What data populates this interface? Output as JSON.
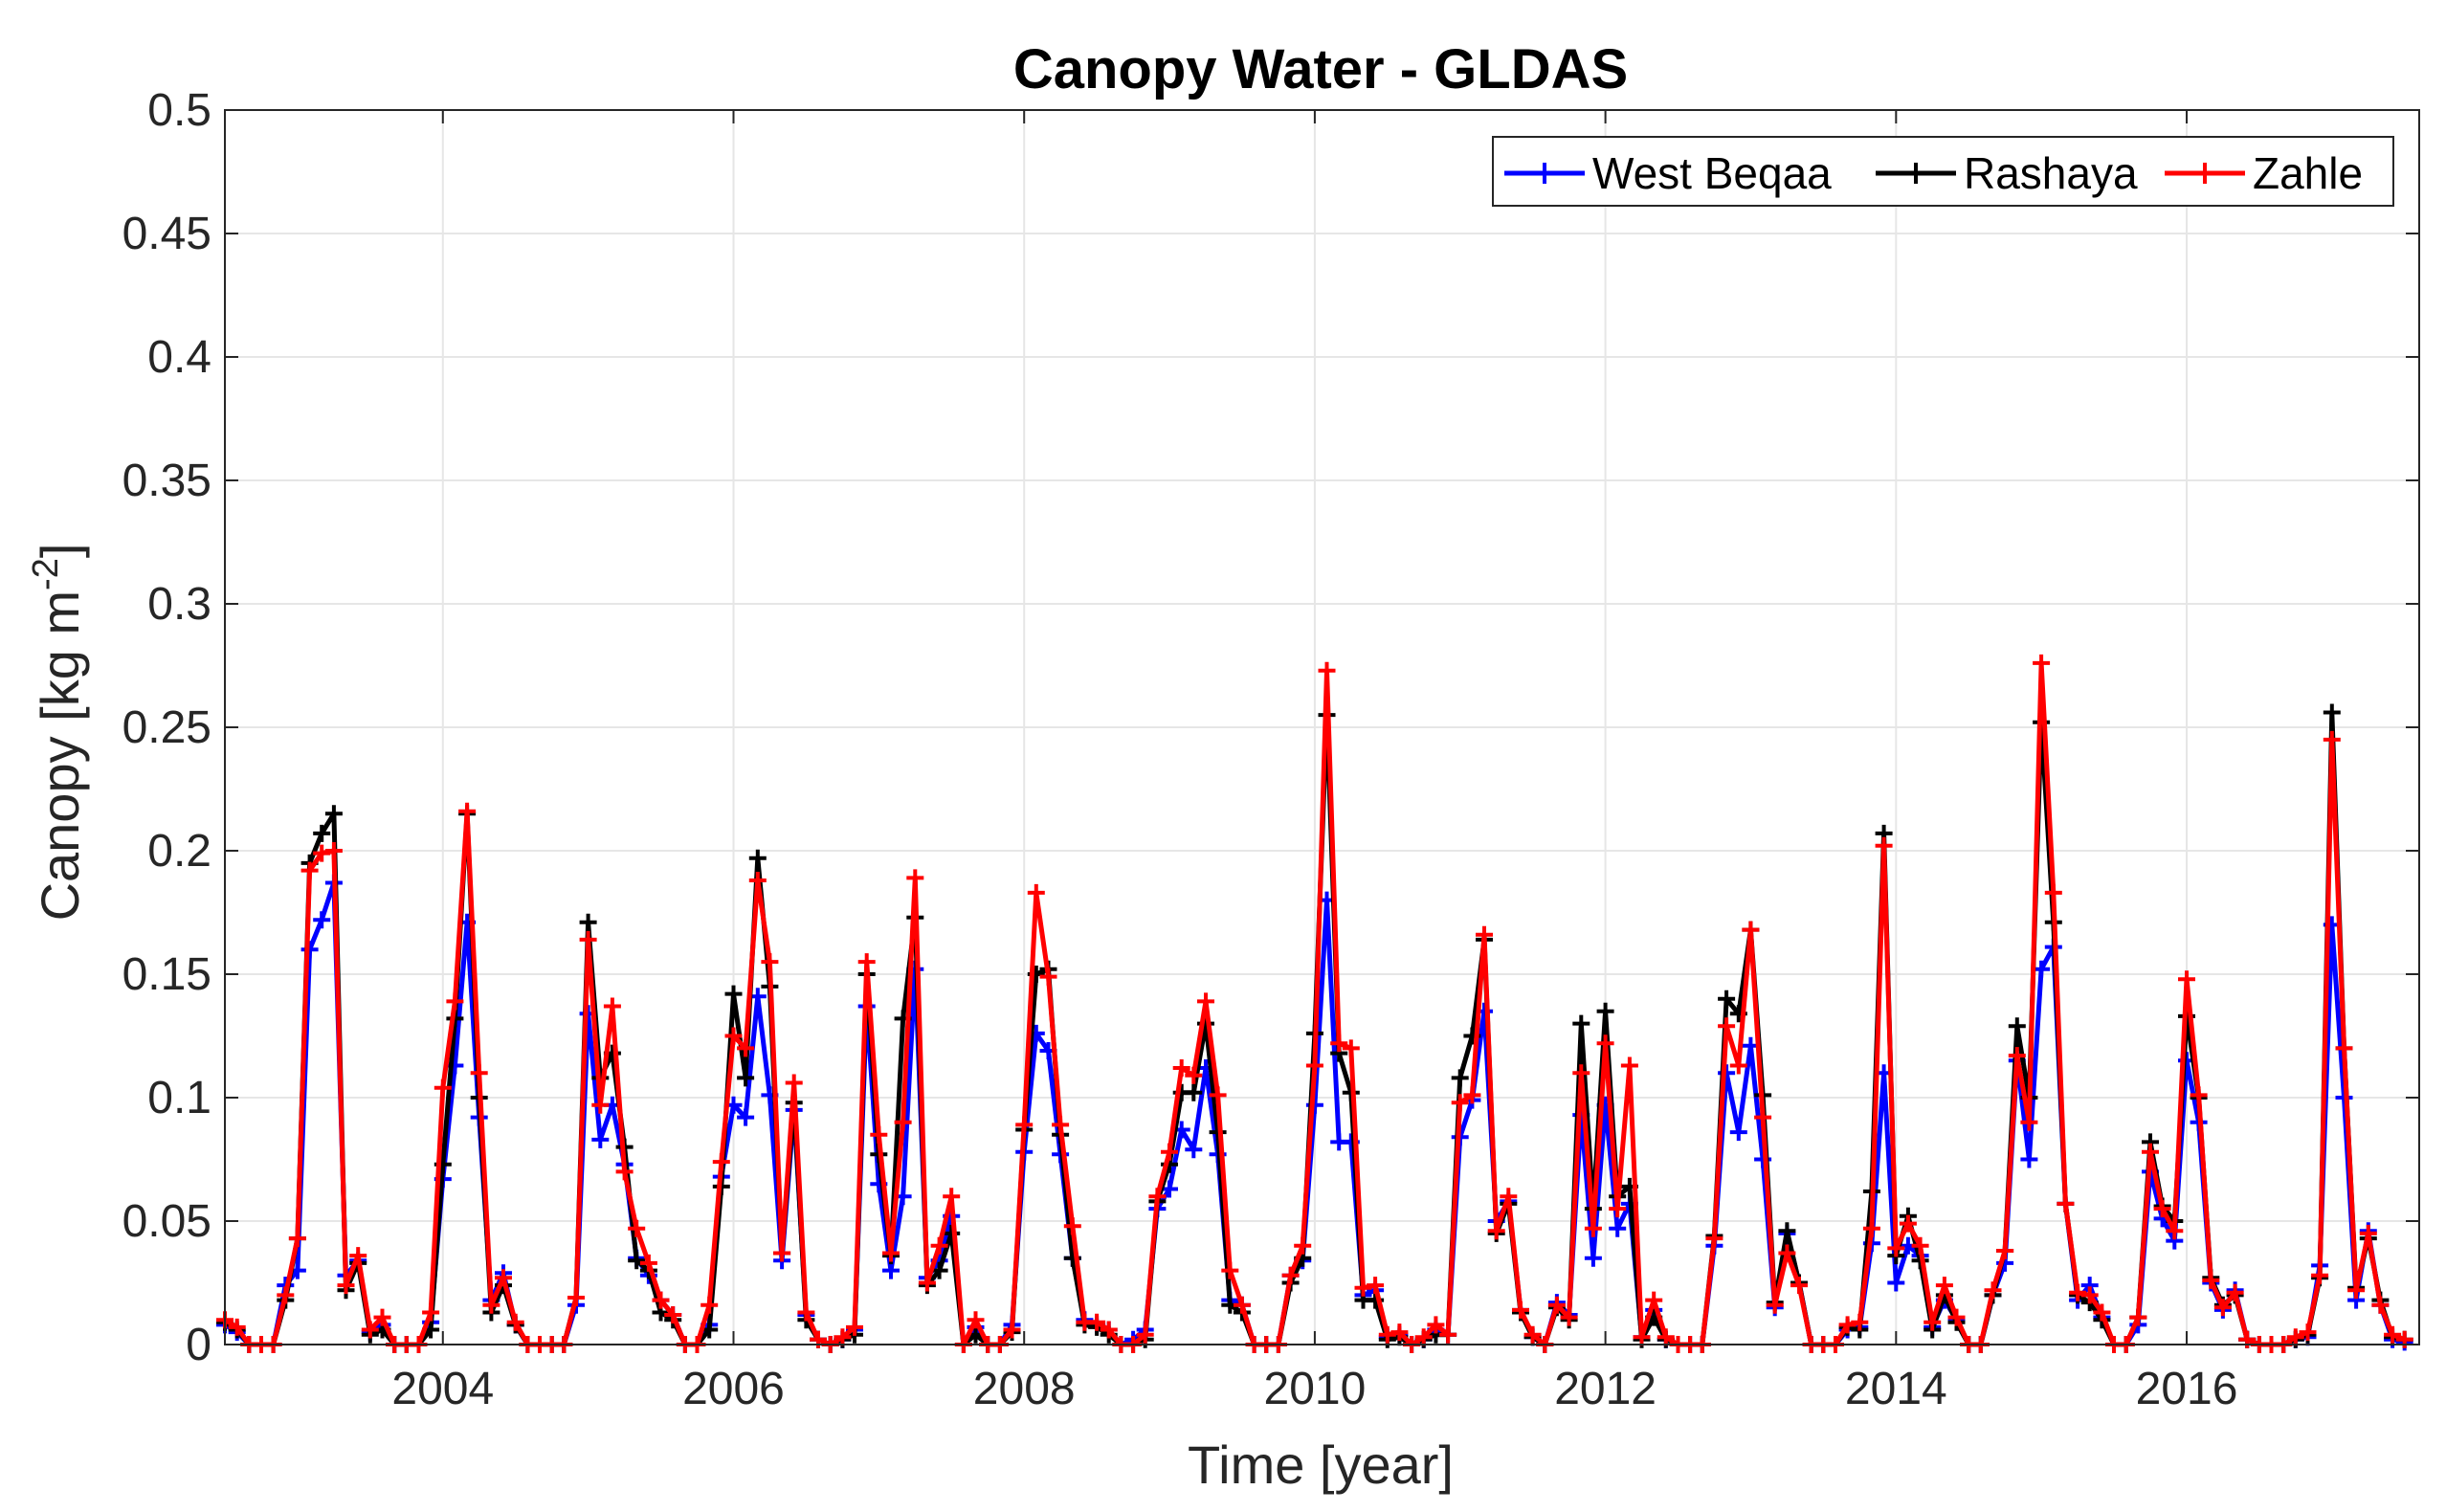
{
  "chart_data": {
    "type": "line",
    "title": "Canopy Water  - GLDAS",
    "xlabel": "Time [year]",
    "ylabel_main": "Canopy [kg m",
    "ylabel_sup": "-2",
    "ylabel_end": "]",
    "xlim": [
      2002.5,
      2017.6
    ],
    "ylim": [
      0,
      0.5
    ],
    "xticks": [
      2004,
      2006,
      2008,
      2010,
      2012,
      2014,
      2016
    ],
    "xtick_labels": [
      "2004",
      "2006",
      "2008",
      "2010",
      "2012",
      "2014",
      "2016"
    ],
    "yticks": [
      0,
      0.05,
      0.1,
      0.15,
      0.2,
      0.25,
      0.3,
      0.35,
      0.4,
      0.45,
      0.5
    ],
    "ytick_labels": [
      "0",
      "0.05",
      "0.1",
      "0.15",
      "0.2",
      "0.25",
      "0.3",
      "0.35",
      "0.4",
      "0.45",
      "0.5"
    ],
    "grid": true,
    "legend_position": "top-right",
    "x_start": 2002.5,
    "x_step": 0.08333,
    "series": [
      {
        "name": "West Beqaa",
        "color": "#0000ff",
        "values": [
          0.008,
          0.005,
          0,
          0,
          0,
          0.024,
          0.03,
          0.16,
          0.172,
          0.187,
          0.028,
          0.034,
          0.005,
          0.008,
          0,
          0,
          0,
          0.009,
          0.067,
          0.113,
          0.171,
          0.092,
          0.018,
          0.029,
          0.008,
          0,
          0,
          0,
          0,
          0.016,
          0.134,
          0.083,
          0.097,
          0.073,
          0.035,
          0.028,
          0.018,
          0.012,
          0,
          0,
          0.008,
          0.068,
          0.097,
          0.092,
          0.141,
          0.101,
          0.034,
          0.095,
          0.012,
          0.002,
          0,
          0.002,
          0.006,
          0.137,
          0.065,
          0.03,
          0.06,
          0.152,
          0.027,
          0.034,
          0.052,
          0,
          0.007,
          0,
          0,
          0.008,
          0.078,
          0.126,
          0.119,
          0.077,
          0.035,
          0.01,
          0.008,
          0.006,
          0,
          0.002,
          0.006,
          0.055,
          0.063,
          0.087,
          0.079,
          0.112,
          0.077,
          0.018,
          0.016,
          0,
          0,
          0,
          0.028,
          0.034,
          0.097,
          0.18,
          0.082,
          0.082,
          0.02,
          0.022,
          0.003,
          0.004,
          0,
          0.002,
          0.006,
          0.004,
          0.084,
          0.099,
          0.135,
          0.05,
          0.058,
          0.014,
          0.003,
          0,
          0.017,
          0.012,
          0.093,
          0.035,
          0.097,
          0.047,
          0.057,
          0.003,
          0.014,
          0.002,
          0,
          0,
          0,
          0.04,
          0.11,
          0.086,
          0.121,
          0.075,
          0.015,
          0.045,
          0.025,
          0,
          0,
          0,
          0.006,
          0.007,
          0.041,
          0.11,
          0.025,
          0.04,
          0.036,
          0.007,
          0.018,
          0.01,
          0,
          0,
          0.02,
          0.033,
          0.115,
          0.075,
          0.152,
          0.161,
          0.057,
          0.018,
          0.024,
          0.011,
          0,
          0,
          0.008,
          0.07,
          0.051,
          0.042,
          0.115,
          0.09,
          0.025,
          0.014,
          0.022,
          0.002,
          0,
          0,
          0,
          0.002,
          0.003,
          0.032,
          0.17,
          0.1,
          0.018,
          0.046,
          0.016,
          0.002,
          0.001
        ]
      },
      {
        "name": "Rashaya",
        "color": "#000000",
        "values": [
          0.009,
          0.006,
          0,
          0,
          0,
          0.018,
          0.043,
          0.195,
          0.207,
          0.215,
          0.022,
          0.033,
          0.004,
          0.006,
          0,
          0,
          0,
          0.006,
          0.073,
          0.132,
          0.215,
          0.1,
          0.013,
          0.024,
          0.008,
          0,
          0,
          0,
          0,
          0.019,
          0.171,
          0.108,
          0.118,
          0.08,
          0.034,
          0.03,
          0.013,
          0.01,
          0,
          0,
          0.006,
          0.064,
          0.142,
          0.108,
          0.197,
          0.145,
          0.037,
          0.098,
          0.01,
          0.002,
          0,
          0.002,
          0.004,
          0.15,
          0.077,
          0.036,
          0.132,
          0.173,
          0.024,
          0.03,
          0.045,
          0,
          0.004,
          0,
          0,
          0.005,
          0.087,
          0.15,
          0.152,
          0.085,
          0.035,
          0.008,
          0.007,
          0.004,
          0,
          0,
          0.002,
          0.058,
          0.073,
          0.102,
          0.102,
          0.13,
          0.086,
          0.016,
          0.013,
          0,
          0,
          0,
          0.025,
          0.035,
          0.126,
          0.255,
          0.118,
          0.102,
          0.018,
          0.018,
          0.002,
          0.003,
          0,
          0.002,
          0.004,
          0.004,
          0.108,
          0.125,
          0.164,
          0.045,
          0.057,
          0.013,
          0.003,
          0,
          0.015,
          0.01,
          0.13,
          0.055,
          0.135,
          0.06,
          0.064,
          0.002,
          0.011,
          0.002,
          0,
          0,
          0,
          0.044,
          0.14,
          0.134,
          0.168,
          0.101,
          0.017,
          0.046,
          0.025,
          0,
          0,
          0,
          0.007,
          0.006,
          0.062,
          0.207,
          0.036,
          0.052,
          0.034,
          0.006,
          0.02,
          0.009,
          0,
          0,
          0.02,
          0.038,
          0.129,
          0.1,
          0.252,
          0.171,
          0.057,
          0.02,
          0.017,
          0.01,
          0,
          0,
          0.011,
          0.082,
          0.056,
          0.05,
          0.133,
          0.1,
          0.027,
          0.016,
          0.02,
          0.002,
          0,
          0,
          0,
          0.002,
          0.004,
          0.027,
          0.256,
          0.12,
          0.023,
          0.043,
          0.018,
          0.003,
          0.002
        ]
      },
      {
        "name": "Zahle",
        "color": "#ff0000",
        "values": [
          0.01,
          0.007,
          0,
          0,
          0,
          0.02,
          0.043,
          0.192,
          0.199,
          0.2,
          0.024,
          0.036,
          0.006,
          0.011,
          0,
          0,
          0,
          0.013,
          0.104,
          0.139,
          0.216,
          0.11,
          0.016,
          0.027,
          0.009,
          0,
          0,
          0,
          0,
          0.019,
          0.164,
          0.097,
          0.137,
          0.07,
          0.047,
          0.033,
          0.018,
          0.012,
          0,
          0,
          0.016,
          0.074,
          0.125,
          0.12,
          0.188,
          0.155,
          0.037,
          0.106,
          0.013,
          0.002,
          0,
          0.003,
          0.007,
          0.155,
          0.085,
          0.037,
          0.09,
          0.189,
          0.025,
          0.04,
          0.06,
          0,
          0.01,
          0,
          0,
          0.006,
          0.089,
          0.183,
          0.149,
          0.089,
          0.048,
          0.009,
          0.009,
          0.006,
          0,
          0,
          0.004,
          0.06,
          0.078,
          0.112,
          0.109,
          0.139,
          0.101,
          0.03,
          0.016,
          0,
          0,
          0,
          0.028,
          0.04,
          0.113,
          0.273,
          0.122,
          0.12,
          0.023,
          0.024,
          0.004,
          0.005,
          0,
          0.003,
          0.008,
          0.004,
          0.098,
          0.101,
          0.166,
          0.046,
          0.06,
          0.014,
          0.004,
          0,
          0.016,
          0.011,
          0.11,
          0.047,
          0.122,
          0.055,
          0.113,
          0.003,
          0.018,
          0.003,
          0,
          0,
          0,
          0.043,
          0.129,
          0.113,
          0.168,
          0.092,
          0.016,
          0.037,
          0.024,
          0,
          0,
          0,
          0.008,
          0.009,
          0.047,
          0.202,
          0.039,
          0.049,
          0.04,
          0.009,
          0.024,
          0.011,
          0,
          0,
          0.022,
          0.038,
          0.117,
          0.09,
          0.276,
          0.183,
          0.057,
          0.021,
          0.02,
          0.013,
          0,
          0,
          0.011,
          0.078,
          0.055,
          0.046,
          0.148,
          0.101,
          0.026,
          0.015,
          0.021,
          0.002,
          0,
          0,
          0,
          0.003,
          0.005,
          0.028,
          0.245,
          0.12,
          0.022,
          0.045,
          0.016,
          0.004,
          0.002
        ]
      }
    ]
  }
}
